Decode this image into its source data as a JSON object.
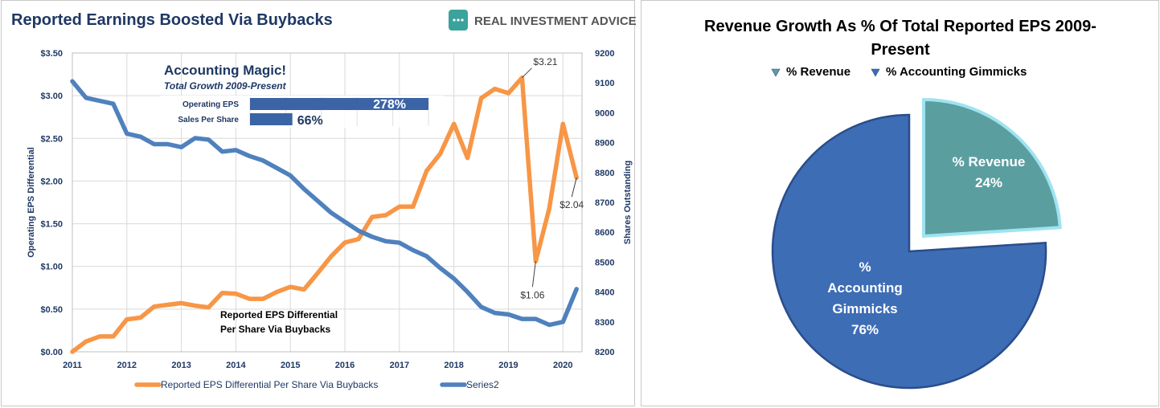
{
  "left_chart": {
    "title": "Reported Earnings Boosted Via Buybacks",
    "brand": "REAL INVESTMENT ADVICE",
    "brand_color": "#3aa39b",
    "inset": {
      "title": "Accounting Magic!",
      "subtitle": "Total Growth 2009-Present",
      "bars": [
        {
          "label": "Operating EPS",
          "value": 278,
          "text": "278%"
        },
        {
          "label": "Sales Per Share",
          "value": 66,
          "text": "66%"
        }
      ]
    },
    "series_label_in_plot": [
      "Reported EPS Differential",
      "Per Share Via Buybacks"
    ],
    "annotations": [
      {
        "text": "$3.21",
        "x": 2019.25,
        "y": 3.21
      },
      {
        "text": "$1.06",
        "x": 2019.5,
        "y": 1.06
      },
      {
        "text": "$2.04",
        "x": 2020.25,
        "y": 2.04
      }
    ],
    "legend": [
      {
        "name": "Reported EPS Differential Per Share Via Buybacks",
        "color": "#f79646"
      },
      {
        "name": "Series2",
        "color": "#4f81bd"
      }
    ]
  },
  "chart_data": [
    {
      "type": "line",
      "title": "Reported Earnings Boosted Via Buybacks",
      "ylabel": "Operating EPS Differential",
      "y2label": "Shares Outstanding",
      "xlim": [
        2011,
        2020.35
      ],
      "ylim": [
        0,
        3.5
      ],
      "y2lim": [
        8200,
        9200
      ],
      "x_ticks": [
        "2011",
        "2012",
        "2013",
        "2014",
        "2015",
        "2016",
        "2017",
        "2018",
        "2019",
        "2020"
      ],
      "y_ticks": [
        "$0.00",
        "$0.50",
        "$1.00",
        "$1.50",
        "$2.00",
        "$2.50",
        "$3.00",
        "$3.50"
      ],
      "y2_ticks": [
        "8200",
        "8300",
        "8400",
        "8500",
        "8600",
        "8700",
        "8800",
        "8900",
        "9000",
        "9100",
        "9200"
      ],
      "grid": true,
      "legend_position": "bottom",
      "series": [
        {
          "name": "Reported EPS Differential Per Share Via Buybacks",
          "axis": "left",
          "color": "#f79646",
          "x": [
            2011.0,
            2011.25,
            2011.5,
            2011.75,
            2012.0,
            2012.25,
            2012.5,
            2012.75,
            2013.0,
            2013.25,
            2013.5,
            2013.75,
            2014.0,
            2014.25,
            2014.5,
            2014.75,
            2015.0,
            2015.25,
            2015.5,
            2015.75,
            2016.0,
            2016.25,
            2016.5,
            2016.75,
            2017.0,
            2017.25,
            2017.5,
            2017.75,
            2018.0,
            2018.25,
            2018.5,
            2018.75,
            2019.0,
            2019.25,
            2019.5,
            2019.75,
            2020.0,
            2020.25
          ],
          "values": [
            0.0,
            0.12,
            0.18,
            0.18,
            0.38,
            0.4,
            0.53,
            0.55,
            0.57,
            0.54,
            0.52,
            0.69,
            0.68,
            0.62,
            0.62,
            0.7,
            0.76,
            0.73,
            0.92,
            1.12,
            1.28,
            1.32,
            1.58,
            1.6,
            1.7,
            1.7,
            2.12,
            2.32,
            2.67,
            2.27,
            2.97,
            3.08,
            3.03,
            3.21,
            1.06,
            1.68,
            2.67,
            2.04
          ]
        },
        {
          "name": "Series2",
          "axis": "right",
          "color": "#4f81bd",
          "x": [
            2011.0,
            2011.25,
            2011.5,
            2011.75,
            2012.0,
            2012.25,
            2012.5,
            2012.75,
            2013.0,
            2013.25,
            2013.5,
            2013.75,
            2014.0,
            2014.25,
            2014.5,
            2014.75,
            2015.0,
            2015.25,
            2015.5,
            2015.75,
            2016.0,
            2016.25,
            2016.5,
            2016.75,
            2017.0,
            2017.25,
            2017.5,
            2017.75,
            2018.0,
            2018.25,
            2018.5,
            2018.75,
            2019.0,
            2019.25,
            2019.5,
            2019.75,
            2020.0,
            2020.25
          ],
          "values": [
            9105,
            9050,
            9040,
            9030,
            8930,
            8920,
            8895,
            8895,
            8885,
            8915,
            8910,
            8870,
            8875,
            8855,
            8840,
            8815,
            8790,
            8745,
            8705,
            8665,
            8635,
            8605,
            8585,
            8570,
            8565,
            8540,
            8520,
            8480,
            8445,
            8400,
            8350,
            8330,
            8325,
            8310,
            8310,
            8290,
            8300,
            8410
          ]
        }
      ]
    },
    {
      "type": "pie",
      "title": "Revenue Growth As % Of Total Reported EPS 2009-Present",
      "title_lines": [
        "Revenue Growth As % Of Total Reported EPS 2009-",
        "Present"
      ],
      "legend_position": "top",
      "categories": [
        "% Revenue",
        "% Accounting Gimmicks"
      ],
      "values": [
        24,
        76
      ],
      "colors": [
        "#5b9ea0",
        "#3d6db5"
      ],
      "slice_labels": [
        [
          "% Revenue",
          "24%"
        ],
        [
          "%",
          "Accounting",
          "Gimmicks",
          "76%"
        ]
      ]
    }
  ]
}
